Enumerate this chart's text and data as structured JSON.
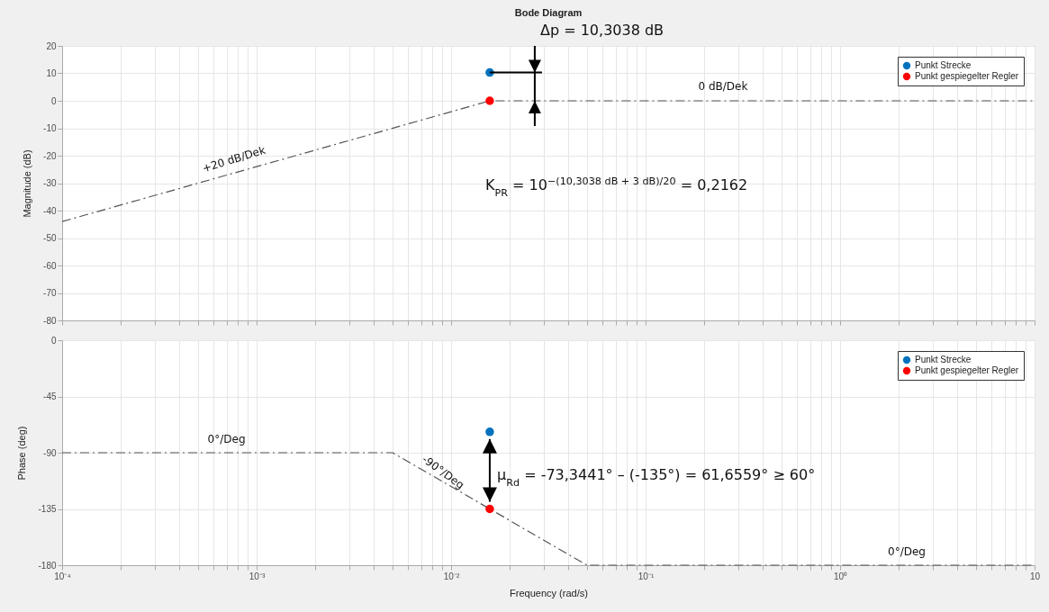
{
  "chart_data": [
    {
      "type": "line",
      "title": "Bode Diagram",
      "ylabel": "Magnitude (dB)",
      "log": "x",
      "grid": true,
      "legend": "top right",
      "tick_labels": "y",
      "xlim": [
        0.0001,
        10
      ],
      "xticks": [
        {
          "value": 0.0001,
          "label": null
        },
        {
          "value": 0.0002,
          "label": null
        },
        {
          "value": 0.0003,
          "label": null
        },
        {
          "value": 0.0004,
          "label": null
        },
        {
          "value": 0.0005,
          "label": null
        },
        {
          "value": 0.0006,
          "label": null
        },
        {
          "value": 0.0007,
          "label": null
        },
        {
          "value": 0.0008,
          "label": null
        },
        {
          "value": 0.0009,
          "label": null
        },
        {
          "value": 0.001,
          "label": null
        },
        {
          "value": 0.002,
          "label": null
        },
        {
          "value": 0.003,
          "label": null
        },
        {
          "value": 0.004,
          "label": null
        },
        {
          "value": 0.005,
          "label": null
        },
        {
          "value": 0.006,
          "label": null
        },
        {
          "value": 0.007,
          "label": null
        },
        {
          "value": 0.008,
          "label": null
        },
        {
          "value": 0.009,
          "label": null
        },
        {
          "value": 0.01,
          "label": null
        },
        {
          "value": 0.02,
          "label": null
        },
        {
          "value": 0.03,
          "label": null
        },
        {
          "value": 0.04,
          "label": null
        },
        {
          "value": 0.05,
          "label": null
        },
        {
          "value": 0.06,
          "label": null
        },
        {
          "value": 0.07,
          "label": null
        },
        {
          "value": 0.08,
          "label": null
        },
        {
          "value": 0.09,
          "label": null
        },
        {
          "value": 0.1,
          "label": null
        },
        {
          "value": 0.2,
          "label": null
        },
        {
          "value": 0.3,
          "label": null
        },
        {
          "value": 0.4,
          "label": null
        },
        {
          "value": 0.5,
          "label": null
        },
        {
          "value": 0.6,
          "label": null
        },
        {
          "value": 0.7,
          "label": null
        },
        {
          "value": 0.8,
          "label": null
        },
        {
          "value": 0.9,
          "label": null
        },
        {
          "value": 1,
          "label": null
        },
        {
          "value": 2,
          "label": null
        },
        {
          "value": 3,
          "label": null
        },
        {
          "value": 4,
          "label": null
        },
        {
          "value": 5,
          "label": null
        },
        {
          "value": 6,
          "label": null
        },
        {
          "value": 7,
          "label": null
        },
        {
          "value": 8,
          "label": null
        },
        {
          "value": 9,
          "label": null
        },
        {
          "value": 10,
          "label": null
        }
      ],
      "ylim": [
        -80,
        20
      ],
      "yticks": [
        -80,
        -70,
        -60,
        -50,
        -40,
        -30,
        -20,
        -10,
        0,
        10,
        20
      ],
      "series": [
        {
          "type": "line",
          "color": "#555555",
          "line_style": "dashed",
          "marker": "none",
          "x": [
            0.0001,
            0.0158,
            10
          ],
          "values": [
            -44,
            0,
            0
          ]
        },
        {
          "type": "scatter",
          "name": "Punkt Strecke",
          "color": "#0072bd",
          "marker": "circle",
          "x": [
            0.0158
          ],
          "values": [
            10.3038
          ]
        },
        {
          "type": "scatter",
          "name": "Punkt gespiegelter Regler",
          "color": "#ff0000",
          "marker": "circle",
          "x": [
            0.0158
          ],
          "values": [
            0
          ]
        }
      ],
      "annotations": [
        {
          "text": "+20 dB/Dek",
          "x": 0.0008,
          "y": -26
        },
        {
          "text": "0 dB/Dek",
          "x": 0.25,
          "y": 0
        },
        "Δp = 10,3038 dB",
        "K$_{PR}$ = 10$^{−(10,3038 dB + 3 dB)/20}$ = 0,2162"
      ]
    },
    {
      "type": "line",
      "xlabel": "Frequency  (rad/s)",
      "ylabel": "Phase (deg)",
      "log": "x",
      "grid": true,
      "legend": "top right",
      "xlim": [
        0.0001,
        10
      ],
      "xticks": [
        {
          "value": 0.0001,
          "label": "10⁻⁴"
        },
        {
          "value": 0.0002,
          "label": null
        },
        {
          "value": 0.0003,
          "label": null
        },
        {
          "value": 0.0004,
          "label": null
        },
        {
          "value": 0.0005,
          "label": null
        },
        {
          "value": 0.0006,
          "label": null
        },
        {
          "value": 0.0007,
          "label": null
        },
        {
          "value": 0.0008,
          "label": null
        },
        {
          "value": 0.0009,
          "label": null
        },
        {
          "value": 0.001,
          "label": "10⁻³"
        },
        {
          "value": 0.002,
          "label": null
        },
        {
          "value": 0.003,
          "label": null
        },
        {
          "value": 0.004,
          "label": null
        },
        {
          "value": 0.005,
          "label": null
        },
        {
          "value": 0.006,
          "label": null
        },
        {
          "value": 0.007,
          "label": null
        },
        {
          "value": 0.008,
          "label": null
        },
        {
          "value": 0.009,
          "label": null
        },
        {
          "value": 0.01,
          "label": "10⁻²"
        },
        {
          "value": 0.02,
          "label": null
        },
        {
          "value": 0.03,
          "label": null
        },
        {
          "value": 0.04,
          "label": null
        },
        {
          "value": 0.05,
          "label": null
        },
        {
          "value": 0.06,
          "label": null
        },
        {
          "value": 0.07,
          "label": null
        },
        {
          "value": 0.08,
          "label": null
        },
        {
          "value": 0.09,
          "label": null
        },
        {
          "value": 0.1,
          "label": "10⁻¹"
        },
        {
          "value": 0.2,
          "label": null
        },
        {
          "value": 0.3,
          "label": null
        },
        {
          "value": 0.4,
          "label": null
        },
        {
          "value": 0.5,
          "label": null
        },
        {
          "value": 0.6,
          "label": null
        },
        {
          "value": 0.7,
          "label": null
        },
        {
          "value": 0.8,
          "label": null
        },
        {
          "value": 0.9,
          "label": null
        },
        {
          "value": 1,
          "label": "10⁰"
        },
        {
          "value": 2,
          "label": null
        },
        {
          "value": 3,
          "label": null
        },
        {
          "value": 4,
          "label": null
        },
        {
          "value": 5,
          "label": null
        },
        {
          "value": 6,
          "label": null
        },
        {
          "value": 7,
          "label": null
        },
        {
          "value": 8,
          "label": null
        },
        {
          "value": 9,
          "label": null
        },
        {
          "value": 10,
          "label": "10"
        }
      ],
      "ylim": [
        -180,
        0
      ],
      "yticks": [
        -180,
        -135,
        -90,
        -45,
        0
      ],
      "series": [
        {
          "type": "line",
          "color": "#555555",
          "line_style": "dashed",
          "marker": "none",
          "x": [
            0.0001,
            0.005,
            0.05,
            10
          ],
          "values": [
            -90,
            -90,
            -180,
            -180
          ]
        },
        {
          "type": "scatter",
          "name": "Punkt Strecke",
          "color": "#0072bd",
          "marker": "circle",
          "x": [
            0.0158
          ],
          "values": [
            -73.3441
          ]
        },
        {
          "type": "scatter",
          "name": "Punkt gespiegelter Regler",
          "color": "#ff0000",
          "marker": "circle",
          "x": [
            0.0158
          ],
          "values": [
            -135
          ]
        }
      ],
      "annotations": [
        {
          "text": "0°/Deg",
          "x": 0.0007,
          "y": -90
        },
        {
          "text": "-90°/Deg",
          "x": 0.0085,
          "y": -112
        },
        {
          "text": "0°/Deg",
          "x": 2.2,
          "y": -180
        },
        "μ$_{Rd}$ = -73,3441° – (-135°) = 61,6559° ≥ 60°"
      ]
    }
  ]
}
